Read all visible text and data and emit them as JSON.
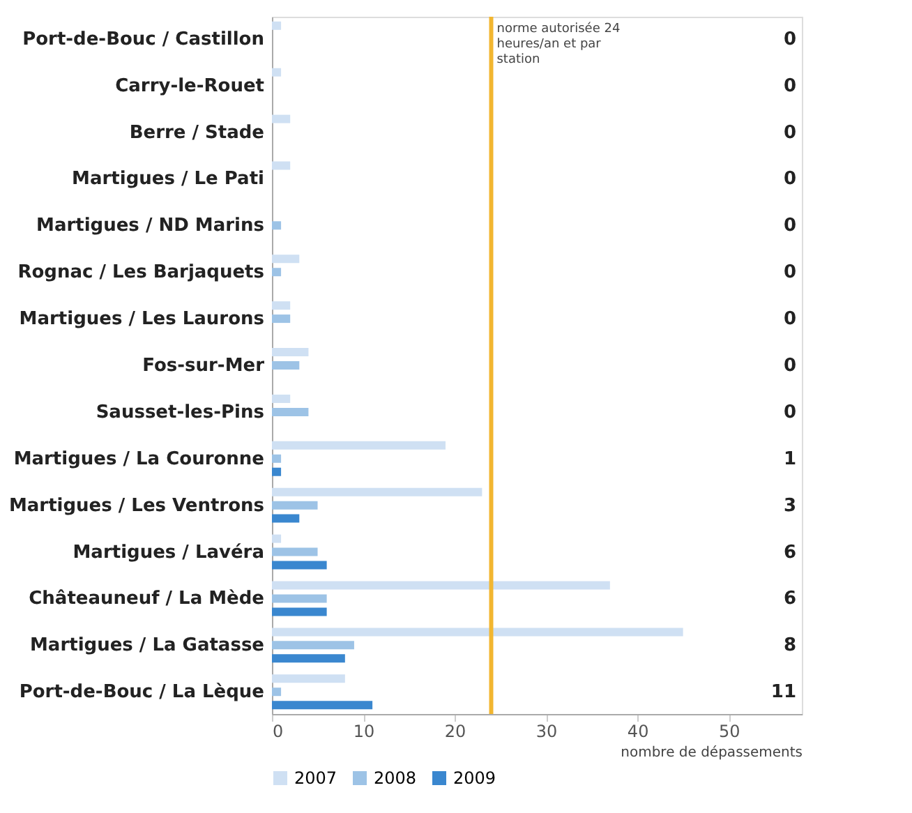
{
  "chart_data": {
    "type": "bar",
    "orientation": "horizontal",
    "categories": [
      "Port-de-Bouc / Castillon",
      "Carry-le-Rouet",
      "Berre / Stade",
      "Martigues / Le Pati",
      "Martigues / ND Marins",
      "Rognac / Les Barjaquets",
      "Martigues / Les Laurons",
      "Fos-sur-Mer",
      "Sausset-les-Pins",
      "Martigues / La Couronne",
      "Martigues / Les Ventrons",
      "Martigues / Lavéra",
      "Châteauneuf / La Mède",
      "Martigues / La Gatasse",
      "Port-de-Bouc / La Lèque"
    ],
    "series": [
      {
        "name": "2007",
        "color": "#cfe0f3",
        "values": [
          1,
          1,
          2,
          2,
          0,
          3,
          2,
          4,
          2,
          19,
          23,
          1,
          37,
          45,
          8
        ]
      },
      {
        "name": "2008",
        "color": "#9dc3e6",
        "values": [
          0,
          0,
          0,
          0,
          1,
          1,
          2,
          3,
          4,
          1,
          5,
          5,
          6,
          9,
          1
        ]
      },
      {
        "name": "2009",
        "color": "#3a87cf",
        "values": [
          0,
          0,
          0,
          0,
          0,
          0,
          0,
          0,
          0,
          1,
          3,
          6,
          6,
          8,
          11
        ],
        "value_labels": [
          "0",
          "0",
          "0",
          "0",
          "0",
          "0",
          "0",
          "0",
          "0",
          "1",
          "3",
          "6",
          "6",
          "8",
          "11"
        ]
      }
    ],
    "xlabel": "nombre de dépassements",
    "xlim": [
      0,
      58
    ],
    "xticks": [
      0,
      10,
      20,
      30,
      40,
      50
    ],
    "ref_lines": [
      {
        "axis": "x",
        "value": 24,
        "label": "norme autorisée 24 heures/an et par station",
        "color": "#f2b630"
      }
    ],
    "grid": false,
    "legend": "bottom left"
  }
}
